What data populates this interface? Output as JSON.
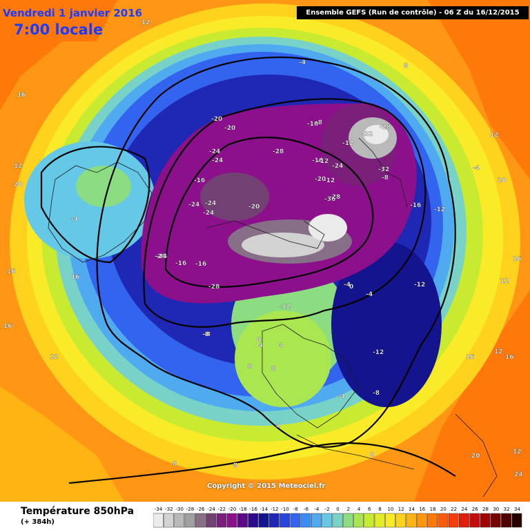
{
  "header": {
    "date": "Vendredi 1 janvier 2016",
    "time": "7:00 locale",
    "run": "Ensemble GEFS  (Run de contrôle)   -  06 Z du 16/12/2015"
  },
  "copyright": "Copyright © 2015 Meteociel.fr",
  "legend": {
    "title": "Température 850hPa",
    "subtitle": "(+ 384h)",
    "ticks": [
      "-34",
      "-32",
      "-30",
      "-28",
      "-26",
      "-24",
      "-22",
      "-20",
      "-18",
      "-16",
      "-14",
      "-12",
      "-10",
      "-8",
      "-6",
      "-4",
      "-2",
      "0",
      "2",
      "4",
      "6",
      "8",
      "10",
      "12",
      "14",
      "16",
      "18",
      "20",
      "22",
      "24",
      "26",
      "28",
      "30",
      "32",
      "34"
    ],
    "colors": [
      "#ebebeb",
      "#d2d2d2",
      "#b9b9b9",
      "#a0a0a0",
      "#876f87",
      "#734073",
      "#7a1f7a",
      "#8c108c",
      "#5c0a8a",
      "#2c0a8c",
      "#14148f",
      "#1e28b4",
      "#2846dc",
      "#3264f0",
      "#3c8cf5",
      "#50aaf0",
      "#64c8e6",
      "#78d2c8",
      "#8cdc82",
      "#aae650",
      "#c8eb32",
      "#e6eb28",
      "#faeb28",
      "#ffd21e",
      "#ffb414",
      "#ff960f",
      "#ff780a",
      "#ff5a0a",
      "#f53c0a",
      "#e11e0a",
      "#c80a0a",
      "#a00505",
      "#780303",
      "#500202",
      "#280000"
    ]
  },
  "map_labels": [
    {
      "text": "12"
    },
    {
      "text": "8"
    },
    {
      "text": "-4"
    },
    {
      "text": "16"
    },
    {
      "text": "-16"
    },
    {
      "text": "-8"
    },
    {
      "text": "-20"
    },
    {
      "text": "-20"
    },
    {
      "text": "-24"
    },
    {
      "text": "-28"
    },
    {
      "text": "-24"
    },
    {
      "text": "-28"
    },
    {
      "text": "-32"
    },
    {
      "text": "-32"
    },
    {
      "text": "-36"
    },
    {
      "text": "-12"
    },
    {
      "text": "-16"
    },
    {
      "text": "-28"
    },
    {
      "text": "-24"
    },
    {
      "text": "-20"
    },
    {
      "text": "-12"
    },
    {
      "text": "-12"
    },
    {
      "text": "-4"
    },
    {
      "text": "-8"
    },
    {
      "text": "-12"
    },
    {
      "text": "-24"
    },
    {
      "text": "-16"
    },
    {
      "text": "-24"
    },
    {
      "text": "-8"
    },
    {
      "text": "0"
    },
    {
      "text": "4"
    },
    {
      "text": "8"
    },
    {
      "text": "16"
    },
    {
      "text": "12"
    },
    {
      "text": "20"
    },
    {
      "text": "16"
    },
    {
      "text": "-12"
    },
    {
      "text": "-8"
    },
    {
      "text": "-4"
    },
    {
      "text": "0"
    },
    {
      "text": "4"
    },
    {
      "text": "8"
    },
    {
      "text": "12"
    },
    {
      "text": "16"
    },
    {
      "text": "12"
    },
    {
      "text": "20"
    },
    {
      "text": "24"
    },
    {
      "text": "16"
    },
    {
      "text": "12"
    },
    {
      "text": "20"
    },
    {
      "text": "16"
    },
    {
      "text": "12"
    },
    {
      "text": "-4"
    },
    {
      "text": "8"
    },
    {
      "text": "-20"
    },
    {
      "text": "-16"
    },
    {
      "text": "-12"
    },
    {
      "text": "-28"
    },
    {
      "text": "-24"
    },
    {
      "text": "-16"
    },
    {
      "text": "-24"
    },
    {
      "text": "-24"
    },
    {
      "text": "-16"
    },
    {
      "text": "-12"
    },
    {
      "text": "-4"
    },
    {
      "text": "0"
    },
    {
      "text": "4"
    },
    {
      "text": "-8"
    },
    {
      "text": "-4"
    },
    {
      "text": "8"
    },
    {
      "text": "12"
    },
    {
      "text": "16"
    }
  ]
}
